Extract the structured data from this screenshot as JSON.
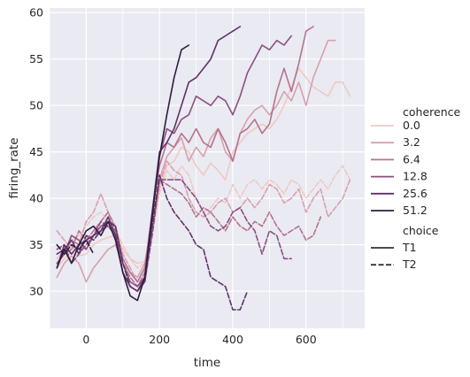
{
  "chart_data": {
    "type": "line",
    "xlabel": "time",
    "ylabel": "firing_rate",
    "xlim": [
      -100,
      760
    ],
    "ylim": [
      26,
      60.5
    ],
    "xticks": [
      0,
      200,
      400,
      600
    ],
    "yticks": [
      30,
      35,
      40,
      45,
      50,
      55,
      60
    ],
    "grid": true,
    "legend": {
      "placement": "right",
      "hue_title": "coherence",
      "hue_entries": [
        "0.0",
        "3.2",
        "6.4",
        "12.8",
        "25.6",
        "51.2"
      ],
      "style_title": "choice",
      "style_entries": [
        "T1",
        "T2"
      ]
    },
    "colors": {
      "0.0": "#efc9c4",
      "3.2": "#d8a0ac",
      "6.4": "#b4738c",
      "12.8": "#8c4f80",
      "25.6": "#5f3268",
      "51.2": "#2d1e3e",
      "background": "#eaeaf2",
      "grid": "#ffffff"
    },
    "series": [
      {
        "coherence": "0.0",
        "choice": "T1",
        "x": [
          -80,
          -60,
          -40,
          -20,
          0,
          20,
          40,
          60,
          80,
          100,
          120,
          140,
          160,
          180,
          200,
          220,
          240,
          260,
          280,
          300,
          320,
          340,
          360,
          380,
          400,
          420,
          440,
          460,
          480,
          500,
          520,
          540,
          560,
          580,
          600,
          620,
          640,
          660,
          680,
          700,
          720
        ],
        "y": [
          32.5,
          33.5,
          34.2,
          33.8,
          34.0,
          35.0,
          35.5,
          35.8,
          36.0,
          34.5,
          33.5,
          33.0,
          33.2,
          36.5,
          41.0,
          43.5,
          44.0,
          45.5,
          45.0,
          43.5,
          42.5,
          43.8,
          43.0,
          42.0,
          45.0,
          46.0,
          47.0,
          47.5,
          48.0,
          47.5,
          48.5,
          50.0,
          52.0,
          54.0,
          53.0,
          52.0,
          51.5,
          51.0,
          52.5,
          52.5,
          51.0
        ]
      },
      {
        "coherence": "0.0",
        "choice": "T2",
        "x": [
          -80,
          -60,
          -40,
          -20,
          0,
          20,
          40,
          60,
          80,
          100,
          120,
          140,
          160,
          180,
          200,
          220,
          240,
          260,
          280,
          300,
          320,
          340,
          360,
          380,
          400,
          420,
          440,
          460,
          480,
          500,
          520,
          540,
          560,
          580,
          600,
          620,
          640,
          660,
          680,
          700,
          720
        ],
        "y": [
          33.5,
          34.5,
          35.5,
          36.0,
          37.0,
          38.0,
          38.5,
          37.5,
          36.5,
          35.0,
          33.5,
          32.5,
          33.0,
          36.0,
          40.5,
          43.0,
          42.0,
          43.5,
          42.5,
          40.0,
          38.5,
          39.0,
          40.0,
          39.5,
          41.5,
          40.0,
          41.5,
          42.0,
          41.0,
          42.0,
          41.5,
          40.5,
          42.0,
          41.5,
          40.0,
          41.0,
          42.0,
          41.0,
          42.5,
          43.5,
          42.0
        ]
      },
      {
        "coherence": "3.2",
        "choice": "T1",
        "x": [
          -80,
          -60,
          -40,
          -20,
          0,
          20,
          40,
          60,
          80,
          100,
          120,
          140,
          160,
          180,
          200,
          220,
          240,
          260,
          280,
          300,
          320,
          340,
          360,
          380,
          400,
          420,
          440,
          460,
          480,
          500,
          520,
          540,
          560,
          580,
          600,
          620,
          640,
          660,
          680
        ],
        "y": [
          31.5,
          33.0,
          33.8,
          33.0,
          31.0,
          32.5,
          33.5,
          34.5,
          35.0,
          33.0,
          32.0,
          31.5,
          33.0,
          37.5,
          42.0,
          44.5,
          45.5,
          46.5,
          44.0,
          45.5,
          44.5,
          46.5,
          47.5,
          45.0,
          44.0,
          47.0,
          48.5,
          49.5,
          50.0,
          49.0,
          50.0,
          51.5,
          50.5,
          52.5,
          50.0,
          53.0,
          55.0,
          57.0,
          57.0
        ]
      },
      {
        "coherence": "3.2",
        "choice": "T2",
        "x": [
          -80,
          -60,
          -40,
          -20,
          0,
          20,
          40,
          60,
          80,
          100,
          120,
          140,
          160,
          180,
          200,
          220,
          240,
          260,
          280,
          300,
          320,
          340,
          360,
          380,
          400,
          420,
          440,
          460,
          480,
          500,
          520,
          540,
          560,
          580,
          600,
          620,
          640,
          660,
          680,
          700,
          720
        ],
        "y": [
          36.5,
          35.5,
          34.5,
          35.0,
          37.5,
          38.5,
          40.5,
          38.5,
          37.0,
          34.0,
          32.5,
          31.0,
          32.5,
          36.5,
          41.5,
          44.0,
          43.0,
          42.5,
          40.0,
          38.5,
          38.0,
          38.5,
          39.5,
          40.0,
          38.5,
          39.0,
          40.0,
          39.0,
          40.0,
          41.5,
          41.0,
          39.5,
          40.0,
          41.0,
          38.5,
          40.0,
          41.0,
          38.0,
          39.0,
          40.0,
          42.0
        ]
      },
      {
        "coherence": "6.4",
        "choice": "T1",
        "x": [
          -80,
          -60,
          -40,
          -20,
          0,
          20,
          40,
          60,
          80,
          100,
          120,
          140,
          160,
          180,
          200,
          220,
          240,
          260,
          280,
          300,
          320,
          340,
          360,
          380,
          400,
          420,
          440,
          460,
          480,
          500,
          520,
          540,
          560,
          580,
          600,
          620
        ],
        "y": [
          33.0,
          34.0,
          35.5,
          35.0,
          34.5,
          36.0,
          36.5,
          37.0,
          36.5,
          33.5,
          32.0,
          31.0,
          32.5,
          38.5,
          43.5,
          46.0,
          45.5,
          47.0,
          46.0,
          47.5,
          46.0,
          45.5,
          47.5,
          46.0,
          44.0,
          47.0,
          47.5,
          48.5,
          47.0,
          48.0,
          51.5,
          54.0,
          51.5,
          54.5,
          58.0,
          58.5
        ]
      },
      {
        "coherence": "6.4",
        "choice": "T2",
        "x": [
          -80,
          -60,
          -40,
          -20,
          0,
          20,
          40,
          60,
          80,
          100,
          120,
          140,
          160,
          180,
          200,
          220,
          240,
          260,
          280,
          300,
          320,
          340,
          360,
          380,
          400,
          420,
          440,
          460,
          480,
          500,
          520,
          540,
          560,
          580,
          600,
          620,
          640
        ],
        "y": [
          35.0,
          34.0,
          34.5,
          36.5,
          35.5,
          36.5,
          37.5,
          38.5,
          36.5,
          33.0,
          31.5,
          30.5,
          32.0,
          36.5,
          42.0,
          41.5,
          41.0,
          40.5,
          39.5,
          38.0,
          39.0,
          38.5,
          37.5,
          36.5,
          38.0,
          37.0,
          36.5,
          37.5,
          37.0,
          38.5,
          37.0,
          36.0,
          36.5,
          37.0,
          35.5,
          36.0,
          38.0
        ]
      },
      {
        "coherence": "12.8",
        "choice": "T1",
        "x": [
          -80,
          -60,
          -40,
          -20,
          0,
          20,
          40,
          60,
          80,
          100,
          120,
          140,
          160,
          180,
          200,
          220,
          240,
          260,
          280,
          300,
          320,
          340,
          360,
          380,
          400,
          420,
          440,
          460,
          480,
          500,
          520,
          540,
          560
        ],
        "y": [
          33.0,
          34.0,
          36.0,
          35.5,
          34.5,
          36.0,
          37.0,
          37.5,
          37.0,
          33.0,
          31.0,
          30.5,
          31.5,
          38.0,
          44.5,
          47.5,
          47.0,
          48.5,
          49.0,
          51.0,
          50.5,
          50.0,
          51.0,
          50.5,
          49.0,
          51.0,
          53.5,
          55.0,
          56.5,
          56.0,
          57.0,
          56.5,
          57.5
        ]
      },
      {
        "coherence": "12.8",
        "choice": "T2",
        "x": [
          -80,
          -60,
          -40,
          -20,
          0,
          20,
          40,
          60,
          80,
          100,
          120,
          140,
          160,
          180,
          200,
          220,
          240,
          260,
          280,
          300,
          320,
          340,
          360,
          380,
          400,
          420,
          440,
          460,
          480,
          500,
          520,
          540,
          560
        ],
        "y": [
          34.5,
          35.0,
          33.0,
          34.0,
          35.0,
          36.0,
          37.5,
          37.0,
          36.0,
          32.0,
          30.5,
          30.0,
          31.0,
          36.0,
          42.0,
          42.0,
          42.0,
          42.0,
          41.0,
          40.0,
          38.5,
          37.0,
          36.5,
          37.0,
          38.5,
          39.0,
          37.5,
          36.5,
          34.0,
          36.5,
          36.0,
          33.5,
          33.5
        ]
      },
      {
        "coherence": "25.6",
        "choice": "T1",
        "x": [
          -80,
          -60,
          -40,
          -20,
          0,
          20,
          40,
          60,
          80,
          100,
          120,
          140,
          160,
          180,
          200,
          220,
          240,
          260,
          280,
          300,
          320,
          340,
          360,
          380,
          400,
          420
        ],
        "y": [
          32.5,
          35.0,
          34.0,
          35.0,
          35.5,
          36.0,
          36.5,
          38.0,
          36.0,
          32.0,
          30.5,
          30.0,
          31.5,
          38.5,
          45.0,
          46.0,
          47.5,
          50.0,
          52.5,
          53.0,
          54.0,
          55.0,
          57.0,
          57.5,
          58.0,
          58.5
        ]
      },
      {
        "coherence": "25.6",
        "choice": "T2",
        "x": [
          -80,
          -60,
          -40,
          -20,
          0,
          20,
          40,
          60,
          80,
          100,
          120,
          140,
          160,
          180,
          200,
          220,
          240,
          260,
          280,
          300,
          320,
          340,
          360,
          380,
          400,
          420,
          440
        ],
        "y": [
          34.0,
          34.5,
          35.5,
          34.0,
          36.0,
          35.5,
          36.5,
          37.5,
          37.0,
          33.0,
          30.5,
          30.0,
          31.0,
          37.0,
          42.5,
          40.0,
          38.5,
          37.5,
          36.5,
          35.0,
          34.5,
          31.5,
          31.0,
          30.5,
          28.0,
          28.0,
          30.0
        ]
      },
      {
        "coherence": "51.2",
        "choice": "T1",
        "x": [
          -80,
          -60,
          -40,
          -20,
          0,
          20,
          40,
          60,
          80,
          100,
          120,
          140,
          160,
          180,
          200,
          220,
          240,
          260,
          280
        ],
        "y": [
          32.5,
          34.5,
          33.0,
          35.0,
          36.5,
          37.0,
          36.0,
          37.5,
          35.5,
          32.0,
          29.5,
          29.0,
          31.5,
          38.0,
          44.5,
          49.0,
          53.0,
          56.0,
          56.5
        ]
      },
      {
        "coherence": "51.2",
        "choice": "T2",
        "x": [
          -80,
          -60,
          -40,
          -20,
          0,
          20
        ],
        "y": [
          35.0,
          34.0,
          35.0,
          34.5,
          35.5,
          34.0
        ]
      }
    ]
  }
}
